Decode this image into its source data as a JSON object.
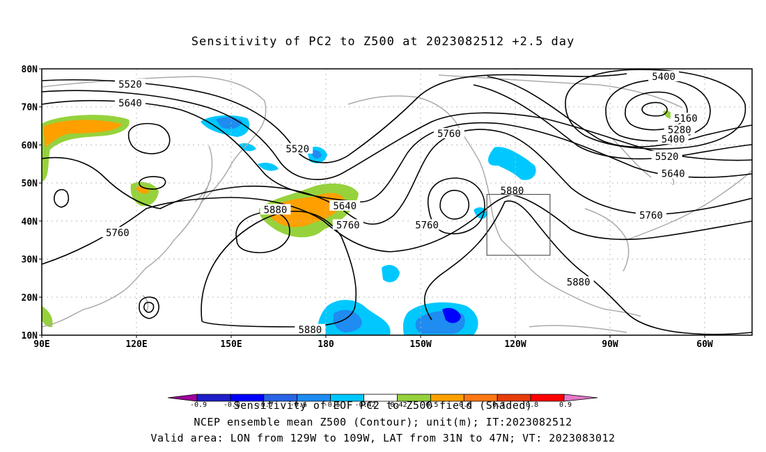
{
  "title": "Sensitivity of PC2 to Z500 at 2023082512 +2.5 day",
  "axes": {
    "lat_labels": [
      "80N",
      "70N",
      "60N",
      "50N",
      "40N",
      "30N",
      "20N",
      "10N"
    ],
    "lon_labels": [
      "90E",
      "120E",
      "150E",
      "180",
      "150W",
      "120W",
      "90W",
      "60W"
    ]
  },
  "contour_labels": [
    {
      "text": "5520",
      "lon": 118,
      "lat": 76
    },
    {
      "text": "5640",
      "lon": 118,
      "lat": 71
    },
    {
      "text": "5400",
      "lon": -73,
      "lat": 78
    },
    {
      "text": "5160",
      "lon": -66,
      "lat": 67
    },
    {
      "text": "5280",
      "lon": -68,
      "lat": 64
    },
    {
      "text": "5400",
      "lon": -70,
      "lat": 61.5
    },
    {
      "text": "5520",
      "lon": -72,
      "lat": 57
    },
    {
      "text": "5640",
      "lon": -70,
      "lat": 52.5
    },
    {
      "text": "5760",
      "lon": -141,
      "lat": 63
    },
    {
      "text": "5520",
      "lon": 171,
      "lat": 59
    },
    {
      "text": "5880",
      "lon": -121,
      "lat": 48
    },
    {
      "text": "5640",
      "lon": -174,
      "lat": 44
    },
    {
      "text": "5880",
      "lon": 164,
      "lat": 43
    },
    {
      "text": "5760",
      "lon": -173,
      "lat": 39
    },
    {
      "text": "5760",
      "lon": -148,
      "lat": 39
    },
    {
      "text": "5760",
      "lon": 114,
      "lat": 37
    },
    {
      "text": "5760",
      "lon": -77,
      "lat": 41.5
    },
    {
      "text": "5880",
      "lon": -100,
      "lat": 24
    },
    {
      "text": "5880",
      "lon": 175,
      "lat": 11.5
    }
  ],
  "valid_box": {
    "lon_min": -129,
    "lon_max": -109,
    "lat_min": 31,
    "lat_max": 47
  },
  "colorbar": {
    "levels": [
      "-0.9",
      "-0.8",
      "-0.7",
      "-0.6",
      "-0.5",
      "-0.42",
      "0.42",
      "0.5",
      "0.6",
      "0.7",
      "0.8",
      "0.9"
    ],
    "colors": [
      "#a0009f",
      "#1e1ec8",
      "#0000ff",
      "#2864e6",
      "#1e8cf0",
      "#00c8ff",
      "#ffffff",
      "#96d23c",
      "#ffa000",
      "#ff7814",
      "#e63c0a",
      "#ff0000",
      "#e678c8"
    ]
  },
  "captions": {
    "line1": "Sensitivity of EOF PC2 to Z500 field (Shaded)",
    "line2": "NCEP ensemble mean Z500 (Contour); unit(m); IT:2023082512",
    "line3": "Valid area: LON from 129W to 109W, LAT from 31N to 47N; VT: 2023083012"
  }
}
